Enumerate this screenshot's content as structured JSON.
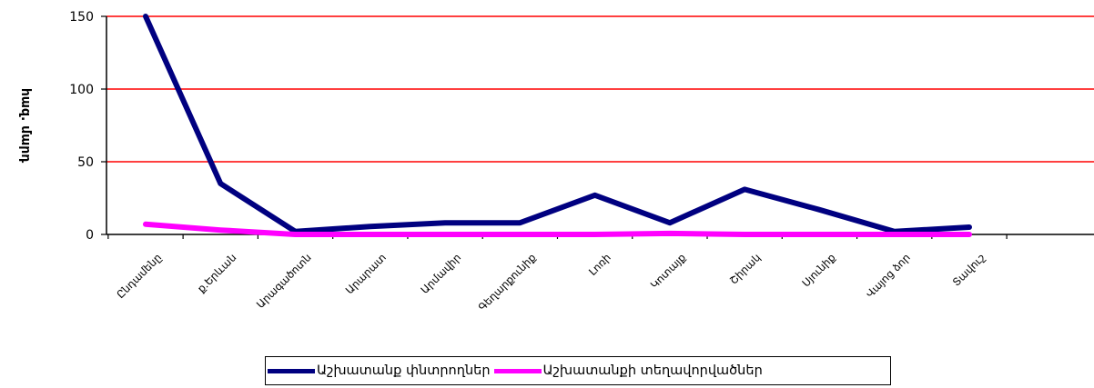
{
  "chart_data": {
    "type": "line",
    "ylabel": "հազ. մարդ",
    "xlabel": "",
    "ylim": [
      0,
      150
    ],
    "yticks": [
      0,
      50,
      100,
      150
    ],
    "grid": "horizontal",
    "categories": [
      "Ընդամենը",
      "ք.Երևան",
      "Արագածոտն",
      "Արարատ",
      "Արմավիր",
      "Գեղարքունիք",
      "Լոռի",
      "Կոտայք",
      "Շիրակ",
      "Սյունիք",
      "Վայոց ձոր",
      "Տավուշ"
    ],
    "series": [
      {
        "name": "Աշխատանք փնտրողներ",
        "color": "#000080",
        "values": [
          150,
          35,
          2,
          5.5,
          8,
          8,
          27,
          8,
          31,
          17,
          2,
          5
        ]
      },
      {
        "name": "Աշխատանքի տեղավորվածներ",
        "color": "#ff00ff",
        "values": [
          7,
          3,
          0,
          0,
          0,
          0,
          0,
          0.7,
          0,
          0,
          0,
          0
        ]
      }
    ],
    "legend_position": "bottom",
    "gridline_color": "#ff0000"
  }
}
